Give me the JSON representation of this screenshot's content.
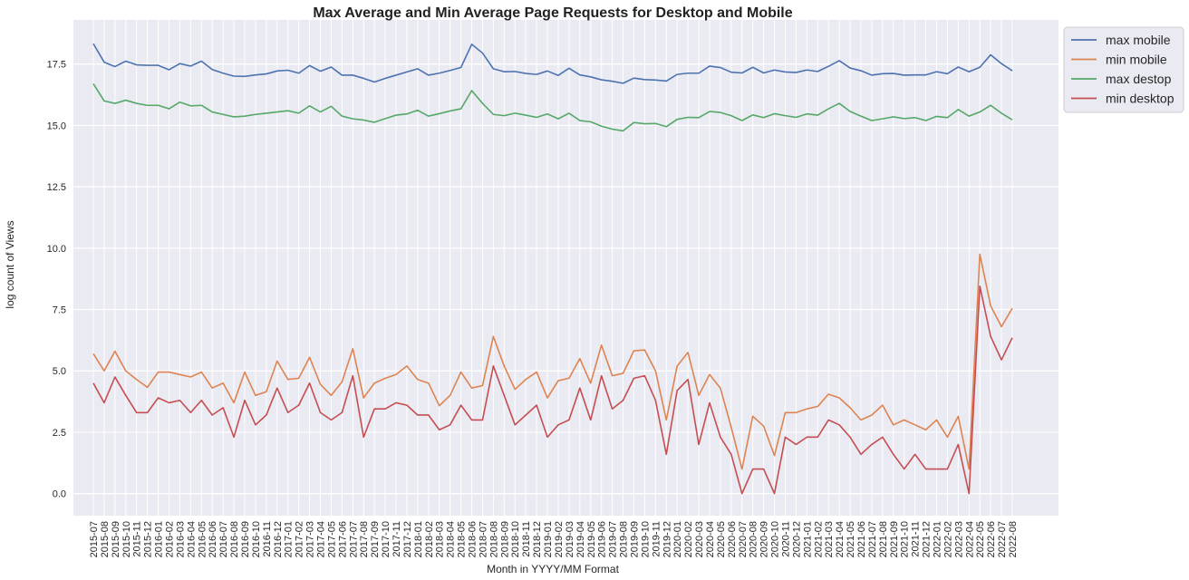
{
  "chart_data": {
    "type": "line",
    "title": "Max Average and Min Average Page Requests for Desktop and Mobile",
    "xlabel": "Month in YYYY/MM Format",
    "ylabel": "log count of Views",
    "ylim": [
      -0.9,
      19.3
    ],
    "yticks": [
      0.0,
      2.5,
      5.0,
      7.5,
      10.0,
      12.5,
      15.0,
      17.5
    ],
    "ytick_labels": [
      "0.0",
      "2.5",
      "5.0",
      "7.5",
      "10.0",
      "12.5",
      "15.0",
      "17.5"
    ],
    "grid": true,
    "legend_position": "outside-top-right",
    "background": "#eaeaf2",
    "categories": [
      "2015-07",
      "2015-08",
      "2015-09",
      "2015-10",
      "2015-11",
      "2015-12",
      "2016-01",
      "2016-02",
      "2016-03",
      "2016-04",
      "2016-05",
      "2016-06",
      "2016-07",
      "2016-08",
      "2016-09",
      "2016-10",
      "2016-11",
      "2016-12",
      "2017-01",
      "2017-02",
      "2017-03",
      "2017-04",
      "2017-05",
      "2017-06",
      "2017-07",
      "2017-08",
      "2017-09",
      "2017-10",
      "2017-11",
      "2017-12",
      "2018-01",
      "2018-02",
      "2018-03",
      "2018-04",
      "2018-05",
      "2018-06",
      "2018-07",
      "2018-08",
      "2018-09",
      "2018-10",
      "2018-11",
      "2018-12",
      "2019-01",
      "2019-02",
      "2019-03",
      "2019-04",
      "2019-05",
      "2019-06",
      "2019-07",
      "2019-08",
      "2019-09",
      "2019-10",
      "2019-11",
      "2019-12",
      "2020-01",
      "2020-02",
      "2020-03",
      "2020-04",
      "2020-05",
      "2020-06",
      "2020-07",
      "2020-08",
      "2020-09",
      "2020-10",
      "2020-11",
      "2020-12",
      "2021-01",
      "2021-02",
      "2021-03",
      "2021-04",
      "2021-05",
      "2021-06",
      "2021-07",
      "2021-08",
      "2021-09",
      "2021-10",
      "2021-11",
      "2021-12",
      "2022-01",
      "2022-02",
      "2022-03",
      "2022-04",
      "2022-05",
      "2022-06",
      "2022-07",
      "2022-08"
    ],
    "series": [
      {
        "name": "max mobile",
        "color": "#4c72b0",
        "values": [
          18.33,
          17.58,
          17.4,
          17.62,
          17.47,
          17.45,
          17.45,
          17.27,
          17.52,
          17.42,
          17.62,
          17.28,
          17.13,
          17.01,
          17.0,
          17.06,
          17.1,
          17.22,
          17.25,
          17.13,
          17.44,
          17.21,
          17.38,
          17.05,
          17.05,
          16.92,
          16.77,
          16.92,
          17.05,
          17.18,
          17.31,
          17.05,
          17.13,
          17.24,
          17.36,
          18.31,
          17.95,
          17.31,
          17.19,
          17.2,
          17.12,
          17.08,
          17.22,
          17.04,
          17.33,
          17.06,
          16.98,
          16.86,
          16.8,
          16.72,
          16.93,
          16.87,
          16.85,
          16.81,
          17.08,
          17.13,
          17.13,
          17.42,
          17.36,
          17.17,
          17.14,
          17.37,
          17.14,
          17.26,
          17.18,
          17.16,
          17.26,
          17.2,
          17.41,
          17.64,
          17.34,
          17.23,
          17.05,
          17.11,
          17.12,
          17.05,
          17.06,
          17.06,
          17.19,
          17.11,
          17.38,
          17.19,
          17.37,
          17.88,
          17.52,
          17.23
        ]
      },
      {
        "name": "min mobile",
        "color": "#dd8452",
        "values": [
          5.7,
          5.0,
          5.8,
          5.0,
          4.65,
          4.33,
          4.95,
          4.95,
          4.85,
          4.75,
          4.95,
          4.3,
          4.5,
          3.7,
          4.95,
          4.0,
          4.15,
          5.4,
          4.65,
          4.7,
          5.55,
          4.45,
          4.0,
          4.55,
          5.9,
          3.9,
          4.5,
          4.7,
          4.85,
          5.2,
          4.65,
          4.5,
          3.58,
          4.0,
          4.95,
          4.3,
          4.4,
          6.4,
          5.2,
          4.25,
          4.65,
          4.95,
          3.9,
          4.6,
          4.7,
          5.5,
          4.5,
          6.05,
          4.8,
          4.9,
          5.82,
          5.85,
          5.0,
          3.0,
          5.2,
          5.75,
          4.0,
          4.85,
          4.3,
          2.7,
          1.0,
          3.15,
          2.75,
          1.55,
          3.3,
          3.3,
          3.45,
          3.55,
          4.05,
          3.9,
          3.5,
          3.0,
          3.2,
          3.6,
          2.8,
          3.0,
          2.8,
          2.6,
          3.0,
          2.3,
          3.15,
          1.0,
          9.75,
          7.65,
          6.8,
          7.55
        ]
      },
      {
        "name": "max destop",
        "color": "#55a868",
        "values": [
          16.7,
          16.0,
          15.9,
          16.03,
          15.9,
          15.82,
          15.82,
          15.68,
          15.95,
          15.8,
          15.82,
          15.55,
          15.45,
          15.35,
          15.38,
          15.45,
          15.5,
          15.55,
          15.6,
          15.5,
          15.8,
          15.55,
          15.78,
          15.38,
          15.27,
          15.22,
          15.13,
          15.28,
          15.42,
          15.47,
          15.62,
          15.38,
          15.48,
          15.59,
          15.68,
          16.42,
          15.9,
          15.45,
          15.4,
          15.5,
          15.42,
          15.33,
          15.47,
          15.27,
          15.5,
          15.2,
          15.15,
          14.97,
          14.85,
          14.78,
          15.12,
          15.07,
          15.08,
          14.95,
          15.25,
          15.33,
          15.32,
          15.57,
          15.53,
          15.4,
          15.2,
          15.43,
          15.32,
          15.48,
          15.4,
          15.33,
          15.47,
          15.42,
          15.68,
          15.9,
          15.57,
          15.38,
          15.2,
          15.27,
          15.35,
          15.28,
          15.32,
          15.2,
          15.37,
          15.32,
          15.65,
          15.38,
          15.55,
          15.82,
          15.5,
          15.23
        ]
      },
      {
        "name": "min desktop",
        "color": "#c44e52",
        "values": [
          4.5,
          3.7,
          4.75,
          4.0,
          3.3,
          3.3,
          3.9,
          3.7,
          3.8,
          3.3,
          3.8,
          3.2,
          3.5,
          2.3,
          3.8,
          2.8,
          3.2,
          4.3,
          3.3,
          3.6,
          4.5,
          3.3,
          3.0,
          3.3,
          4.8,
          2.3,
          3.45,
          3.45,
          3.7,
          3.6,
          3.2,
          3.2,
          2.6,
          2.8,
          3.6,
          3.0,
          3.0,
          5.2,
          4.0,
          2.8,
          3.2,
          3.6,
          2.3,
          2.8,
          3.0,
          4.3,
          3.0,
          4.8,
          3.45,
          3.8,
          4.7,
          4.8,
          3.8,
          1.6,
          4.2,
          4.65,
          2.0,
          3.7,
          2.3,
          1.6,
          0.0,
          1.0,
          1.0,
          0.0,
          2.3,
          2.0,
          2.3,
          2.3,
          3.0,
          2.8,
          2.3,
          1.6,
          2.0,
          2.3,
          1.6,
          1.0,
          1.6,
          1.0,
          1.0,
          1.0,
          2.0,
          0.0,
          8.45,
          6.4,
          5.45,
          6.35
        ]
      }
    ]
  }
}
